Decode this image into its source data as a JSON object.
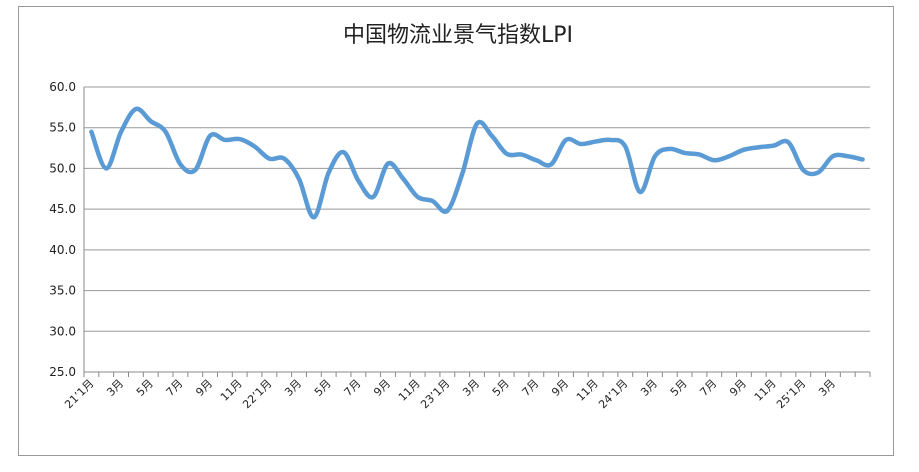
{
  "chart_data": {
    "type": "line",
    "title": "中国物流业景气指数LPI",
    "categories": [
      "21’1月",
      null,
      "3月",
      null,
      "5月",
      null,
      "7月",
      null,
      "9月",
      null,
      "11月",
      null,
      "22’1月",
      null,
      "3月",
      null,
      "5月",
      null,
      "7月",
      null,
      "9月",
      null,
      "11月",
      null,
      "23’1月",
      null,
      "3月",
      null,
      "5月",
      null,
      "7月",
      null,
      "9月",
      null,
      "11月",
      null,
      "24’1月",
      null,
      "3月",
      null,
      "5月",
      null,
      "7月",
      null,
      "9月",
      null,
      "11月",
      null,
      "25’1月",
      null,
      "3月",
      null,
      null
    ],
    "series": [
      {
        "name": "LPI",
        "color": "#5b9bd5",
        "values": [
          54.5,
          50.0,
          54.5,
          57.3,
          55.8,
          54.5,
          50.5,
          49.8,
          54.0,
          53.5,
          53.6,
          52.7,
          51.2,
          51.2,
          48.7,
          44.0,
          49.5,
          52.0,
          48.5,
          46.5,
          50.6,
          48.8,
          46.5,
          46.0,
          44.8,
          49.3,
          55.5,
          54.0,
          51.8,
          51.7,
          51.0,
          50.5,
          53.5,
          53.0,
          53.3,
          53.5,
          52.7,
          47.1,
          51.5,
          52.4,
          51.9,
          51.7,
          51.0,
          51.5,
          52.3,
          52.6,
          52.8,
          53.2,
          49.8,
          49.5,
          51.5,
          51.5,
          51.1
        ]
      }
    ],
    "ylim": [
      25,
      60
    ],
    "yticks": [
      {
        "value": 25,
        "label": "25.0"
      },
      {
        "value": 30,
        "label": "30.0"
      },
      {
        "value": 35,
        "label": "35.0"
      },
      {
        "value": 40,
        "label": "40.0"
      },
      {
        "value": 45,
        "label": "45.0"
      },
      {
        "value": 50,
        "label": "50.0"
      },
      {
        "value": 55,
        "label": "55.0"
      },
      {
        "value": 60,
        "label": "60.0"
      }
    ],
    "grid": true
  }
}
